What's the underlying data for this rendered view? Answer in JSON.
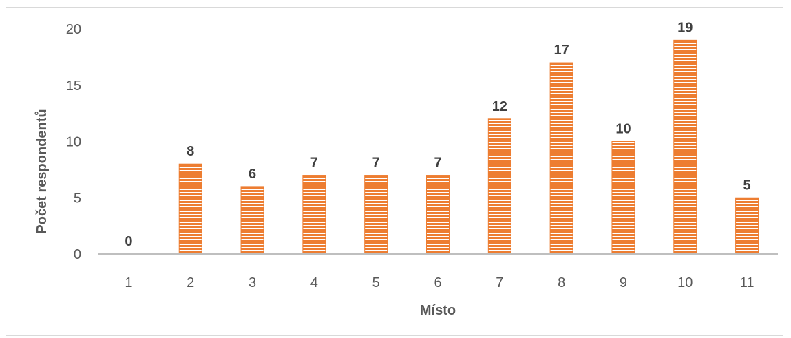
{
  "chart_data": {
    "type": "bar",
    "title": "",
    "xlabel": "Místo",
    "ylabel": "Počet respondentů",
    "categories": [
      "1",
      "2",
      "3",
      "4",
      "5",
      "6",
      "7",
      "8",
      "9",
      "10",
      "11"
    ],
    "values": [
      0,
      8,
      6,
      7,
      7,
      7,
      12,
      17,
      10,
      19,
      5
    ],
    "ylim": [
      0,
      20
    ],
    "yticks": [
      "0",
      "5",
      "10",
      "15",
      "20"
    ],
    "grid": false,
    "legend": "none",
    "bar_color": "#ed7d31",
    "bar_stripe_color": "#ffffff",
    "axis_color": "#bfbfbf",
    "data_labels": true
  }
}
